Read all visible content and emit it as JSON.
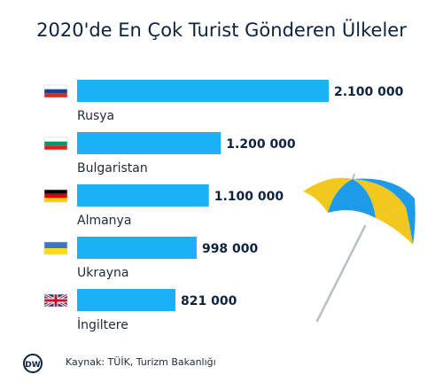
{
  "title": "2020'de En Çok Turist Gönderen Ülkeler",
  "source": "Kaynak: TÜİK, Turizm Bakanlığı",
  "logo_text": "DW",
  "colors": {
    "bar": "#1bb1f7",
    "title": "#0d2340",
    "value": "#0d2340",
    "umbrella_yellow": "#f2c81e",
    "umbrella_blue": "#1e9be8",
    "pole": "#b9bfc7"
  },
  "chart_data": {
    "type": "bar",
    "orientation": "horizontal",
    "title": "2020'de En Çok Turist Gönderen Ülkeler",
    "categories": [
      "Rusya",
      "Bulgaristan",
      "Almanya",
      "Ukrayna",
      "İngiltere"
    ],
    "values": [
      2100000,
      1200000,
      1100000,
      998000,
      821000
    ],
    "value_labels": [
      "2.100 000",
      "1.200 000",
      "1.100 000",
      "998 000",
      "821 000"
    ],
    "flags": [
      "russia-flag-icon",
      "bulgaria-flag-icon",
      "germany-flag-icon",
      "ukraine-flag-icon",
      "uk-flag-icon"
    ],
    "grid": false
  }
}
